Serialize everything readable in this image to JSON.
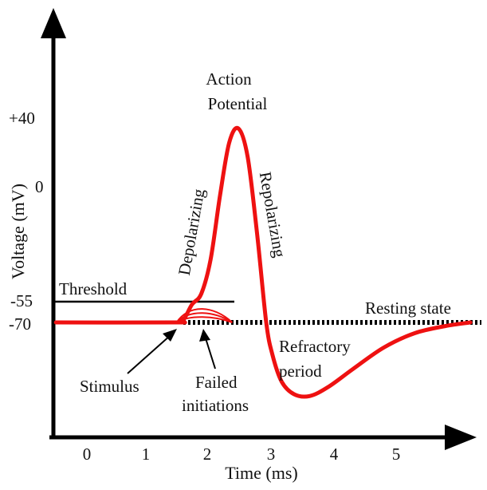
{
  "chart_data": {
    "type": "line",
    "xlabel": "Time (ms)",
    "ylabel": "Voltage (mV)",
    "x_ticks": [
      "0",
      "1",
      "2",
      "3",
      "4",
      "5"
    ],
    "y_ticks": [
      "+40",
      "0",
      "-55",
      "-70"
    ],
    "series": [
      {
        "color": "#ee1111",
        "x": [
          -0.5,
          1.4,
          1.55,
          1.7,
          1.85,
          2.0,
          2.15,
          2.3,
          2.45,
          2.6,
          2.75,
          2.9,
          3.0,
          3.15,
          3.35,
          3.6,
          3.9,
          4.3,
          4.8,
          5.3,
          5.8,
          6.2
        ],
        "y": [
          -70,
          -70,
          -69,
          -60,
          -54,
          -35,
          0,
          30,
          38,
          22,
          -20,
          -70,
          -88,
          -103,
          -110,
          -111,
          -106,
          -96,
          -84,
          -76,
          -72,
          -70
        ]
      }
    ],
    "failed_initiations": [
      {
        "peak": -60
      },
      {
        "peak": -63
      },
      {
        "peak": -66
      }
    ],
    "threshold": -55,
    "resting": -70
  },
  "labels": {
    "action_potential": [
      "Action",
      "Potential"
    ],
    "threshold": "Threshold",
    "depolarizing": "Depolarizing",
    "repolarizing": "Repolarizing",
    "resting_state": "Resting state",
    "refractory": [
      "Refractory",
      "period"
    ],
    "stimulus": "Stimulus",
    "failed": [
      "Failed",
      "initiations"
    ]
  },
  "colors": {
    "curve": "#ee1111",
    "axis": "#000000",
    "text": "#111111"
  }
}
